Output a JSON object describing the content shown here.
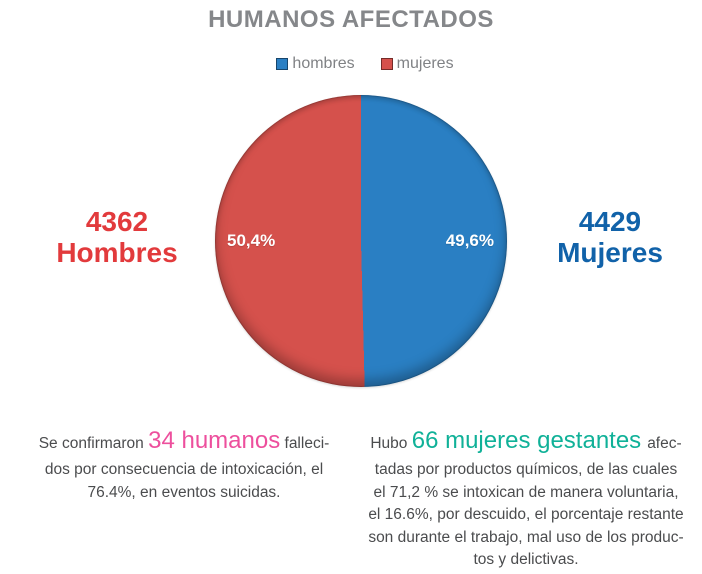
{
  "chart_data": {
    "type": "pie",
    "title": "HUMANOS AFECTADOS",
    "legend_position": "top",
    "slices": [
      {
        "name": "hombres",
        "percent": 49.6,
        "percent_label": "49,6%",
        "color": "#2a7fc3"
      },
      {
        "name": "mujeres",
        "percent": 50.4,
        "percent_label": "50,4%",
        "color": "#d5514c"
      }
    ],
    "annotations": [
      {
        "side": "left",
        "value": "4362",
        "label": "Hombres",
        "color": "#e23a3c"
      },
      {
        "side": "right",
        "value": "4429",
        "label": "Mujeres",
        "color": "#1162a9"
      }
    ]
  },
  "notes": {
    "left": {
      "intro": "Se confirmaron ",
      "highlight": "34 humanos",
      "highlight_color": "#ed4f9d",
      "line1_end": " falleci-",
      "line2": "dos por consecuencia de intoxicación, el",
      "line3": "76.4%, en eventos suicidas."
    },
    "right": {
      "intro": "Hubo ",
      "highlight": "66 mujeres gestantes",
      "highlight_color": "#10b198",
      "line1_end": "afec-",
      "line2": "tadas por productos químicos, de las cuales",
      "line3": "el 71,2 % se intoxican de manera voluntaria,",
      "line4": "el 16.6%, por descuido, el porcentaje restante",
      "line5": "son durante el trabajo, mal uso de los produc-",
      "line6": "tos y delictivas."
    }
  }
}
